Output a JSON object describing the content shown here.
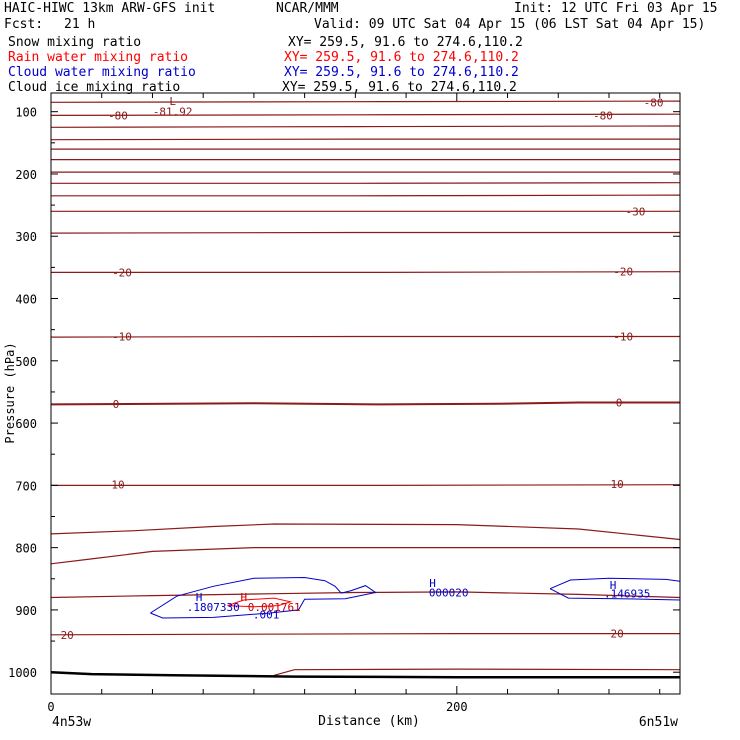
{
  "header": {
    "model": "HAIC-HIWC 13km ARW-GFS init",
    "org": "NCAR/MMM",
    "init": "Init: 12 UTC Fri 03 Apr 15",
    "fcst_label": "Fcst:",
    "fcst_value": "21 h",
    "valid": "Valid: 09 UTC Sat 04 Apr 15 (06 LST Sat 04 Apr 15)"
  },
  "legend": [
    {
      "label": "Snow mixing ratio",
      "xy": "XY= 259.5, 91.6 to 274.6,110.2",
      "color": "#000000"
    },
    {
      "label": "Rain water mixing ratio",
      "xy": "XY= 259.5, 91.6 to 274.6,110.2",
      "color": "#ff0000"
    },
    {
      "label": "Cloud water mixing ratio",
      "xy": "XY= 259.5, 91.6 to 274.6,110.2",
      "color": "#0000cc"
    },
    {
      "label": "Cloud ice mixing ratio",
      "xy": "XY= 259.5, 91.6 to 274.6,110.2",
      "color": "#000000"
    }
  ],
  "chart_data": {
    "type": "line",
    "xlabel": "Distance (km)",
    "ylabel": "Pressure (hPa)",
    "xlim": [
      0,
      310
    ],
    "ylim": [
      1035,
      70
    ],
    "x_ticks": [
      0,
      200
    ],
    "y_ticks": [
      100,
      200,
      300,
      400,
      500,
      600,
      700,
      800,
      900,
      1000
    ],
    "x_endpoint_labels": {
      "left": "4n53w",
      "right": "6n51w"
    },
    "temperature_contour_color": "#8b1a1a",
    "isotherms": [
      {
        "label": "-80",
        "points": [
          [
            0,
            85
          ],
          [
            150,
            84
          ],
          [
            310,
            83
          ]
        ]
      },
      {
        "label": "-80",
        "points": [
          [
            0,
            106
          ],
          [
            150,
            105
          ],
          [
            310,
            104
          ]
        ]
      },
      {
        "label": "",
        "points": [
          [
            0,
            125
          ],
          [
            150,
            124
          ],
          [
            310,
            123
          ]
        ]
      },
      {
        "label": "",
        "points": [
          [
            0,
            145
          ],
          [
            150,
            144
          ],
          [
            310,
            144
          ]
        ]
      },
      {
        "label": "",
        "points": [
          [
            0,
            160
          ],
          [
            150,
            160
          ],
          [
            310,
            160
          ]
        ]
      },
      {
        "label": "",
        "points": [
          [
            0,
            177
          ],
          [
            150,
            177
          ],
          [
            310,
            177
          ]
        ]
      },
      {
        "label": "",
        "points": [
          [
            0,
            197
          ],
          [
            150,
            197
          ],
          [
            310,
            197
          ]
        ]
      },
      {
        "label": "",
        "points": [
          [
            0,
            215
          ],
          [
            150,
            215
          ],
          [
            310,
            214
          ]
        ]
      },
      {
        "label": "",
        "points": [
          [
            0,
            235
          ],
          [
            150,
            235
          ],
          [
            310,
            234
          ]
        ]
      },
      {
        "label": "-30",
        "points": [
          [
            0,
            260
          ],
          [
            150,
            260
          ],
          [
            310,
            260
          ]
        ]
      },
      {
        "label": "",
        "points": [
          [
            0,
            295
          ],
          [
            150,
            294
          ],
          [
            310,
            294
          ]
        ]
      },
      {
        "label": "-20",
        "points": [
          [
            0,
            358
          ],
          [
            150,
            358
          ],
          [
            310,
            357
          ]
        ]
      },
      {
        "label": "-10",
        "points": [
          [
            0,
            462
          ],
          [
            150,
            461
          ],
          [
            310,
            461
          ]
        ]
      },
      {
        "label": "0",
        "points": [
          [
            0,
            570
          ],
          [
            100,
            568
          ],
          [
            160,
            570
          ],
          [
            220,
            569
          ],
          [
            260,
            567
          ],
          [
            310,
            567
          ]
        ]
      },
      {
        "label": "10",
        "points": [
          [
            0,
            700
          ],
          [
            150,
            700
          ],
          [
            310,
            699
          ]
        ]
      },
      {
        "label": "",
        "points": [
          [
            0,
            778
          ],
          [
            40,
            773
          ],
          [
            80,
            766
          ],
          [
            110,
            762
          ],
          [
            200,
            763
          ],
          [
            260,
            770
          ],
          [
            310,
            787
          ]
        ]
      },
      {
        "label": "",
        "points": [
          [
            0,
            826
          ],
          [
            20,
            818
          ],
          [
            50,
            806
          ],
          [
            100,
            800
          ],
          [
            200,
            800
          ],
          [
            310,
            800
          ]
        ]
      },
      {
        "label": "",
        "points": [
          [
            0,
            880
          ],
          [
            50,
            877
          ],
          [
            110,
            874
          ],
          [
            150,
            872
          ],
          [
            200,
            871
          ],
          [
            260,
            875
          ],
          [
            310,
            880
          ]
        ]
      },
      {
        "label": "20",
        "points": [
          [
            0,
            940
          ],
          [
            100,
            939
          ],
          [
            200,
            938
          ],
          [
            310,
            938
          ]
        ]
      },
      {
        "label": "",
        "points": [
          [
            110,
            1005
          ],
          [
            120,
            996
          ],
          [
            200,
            995
          ],
          [
            310,
            996
          ]
        ]
      }
    ],
    "labeled_values": [
      {
        "text": "L",
        "x": 60,
        "y": 83,
        "color": "#8b1a1a"
      },
      {
        "text": "-81.92",
        "x": 60,
        "y": 100,
        "color": "#8b1a1a"
      },
      {
        "text": "-80",
        "x": 33,
        "y": 106,
        "color": "#8b1a1a"
      },
      {
        "text": "-80",
        "x": 297,
        "y": 85,
        "color": "#8b1a1a"
      },
      {
        "text": "-80",
        "x": 272,
        "y": 106,
        "color": "#8b1a1a"
      },
      {
        "text": "-30",
        "x": 288,
        "y": 260,
        "color": "#8b1a1a"
      },
      {
        "text": "-20",
        "x": 35,
        "y": 358,
        "color": "#8b1a1a"
      },
      {
        "text": "-20",
        "x": 282,
        "y": 357,
        "color": "#8b1a1a"
      },
      {
        "text": "-10",
        "x": 35,
        "y": 461,
        "color": "#8b1a1a"
      },
      {
        "text": "-10",
        "x": 282,
        "y": 461,
        "color": "#8b1a1a"
      },
      {
        "text": "0",
        "x": 32,
        "y": 569,
        "color": "#8b1a1a"
      },
      {
        "text": "0",
        "x": 280,
        "y": 567,
        "color": "#8b1a1a"
      },
      {
        "text": "10",
        "x": 33,
        "y": 699,
        "color": "#8b1a1a"
      },
      {
        "text": "10",
        "x": 279,
        "y": 698,
        "color": "#8b1a1a"
      },
      {
        "text": "20",
        "x": 8,
        "y": 940,
        "color": "#8b1a1a"
      },
      {
        "text": "20",
        "x": 279,
        "y": 938,
        "color": "#8b1a1a"
      },
      {
        "text": "H",
        "x": 73,
        "y": 879,
        "color": "#0000cc"
      },
      {
        "text": ".1807330",
        "x": 80,
        "y": 895,
        "color": "#0000cc"
      },
      {
        "text": "H",
        "x": 95,
        "y": 879,
        "color": "#cc0000"
      },
      {
        "text": "0.001761",
        "x": 110,
        "y": 895,
        "color": "#cc0000"
      },
      {
        "text": ".001",
        "x": 106,
        "y": 907,
        "color": "#0000cc"
      },
      {
        "text": "H",
        "x": 188,
        "y": 857,
        "color": "#0000cc"
      },
      {
        "text": "000020",
        "x": 196,
        "y": 872,
        "color": "#0000cc"
      },
      {
        "text": "H",
        "x": 277,
        "y": 860,
        "color": "#0000cc"
      },
      {
        "text": ".146935",
        "x": 284,
        "y": 874,
        "color": "#0000cc"
      }
    ],
    "cloud_water_contours": [
      {
        "points": [
          [
            49,
            905
          ],
          [
            62,
            878
          ],
          [
            80,
            862
          ],
          [
            100,
            849
          ],
          [
            125,
            848
          ],
          [
            135,
            853
          ],
          [
            140,
            862
          ],
          [
            143,
            873
          ],
          [
            148,
            869
          ],
          [
            155,
            861
          ],
          [
            160,
            872
          ],
          [
            145,
            882
          ],
          [
            125,
            883
          ],
          [
            122,
            900
          ],
          [
            108,
            905
          ],
          [
            80,
            912
          ],
          [
            55,
            913
          ],
          [
            49,
            905
          ]
        ]
      },
      {
        "points": [
          [
            246,
            866
          ],
          [
            256,
            852
          ],
          [
            275,
            849
          ],
          [
            303,
            851
          ],
          [
            310,
            854
          ]
        ]
      },
      {
        "points": [
          [
            246,
            866
          ],
          [
            255,
            881
          ],
          [
            280,
            882
          ],
          [
            310,
            884
          ]
        ]
      }
    ],
    "rain_contours": [
      {
        "points": [
          [
            87,
            893
          ],
          [
            95,
            884
          ],
          [
            110,
            881
          ],
          [
            118,
            887
          ],
          [
            112,
            893
          ],
          [
            100,
            895
          ],
          [
            87,
            893
          ]
        ]
      }
    ],
    "ground_line": [
      [
        0,
        1000
      ],
      [
        20,
        1003
      ],
      [
        60,
        1005
      ],
      [
        120,
        1007
      ],
      [
        200,
        1008
      ],
      [
        310,
        1008
      ]
    ]
  }
}
